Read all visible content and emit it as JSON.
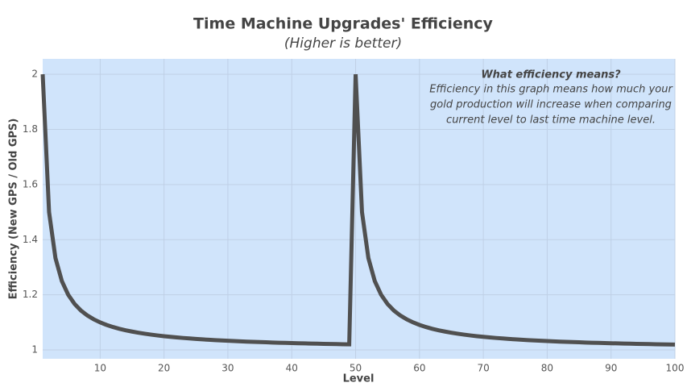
{
  "chart_data": {
    "type": "line",
    "title": "Time Machine Upgrades' Efficiency",
    "subtitle": "(Higher is better)",
    "x_label": "Level",
    "y_label": "Efficiency (New GPS / Old GPS)",
    "annotation": {
      "title": "What efficiency means?",
      "lines": [
        "Efficiency in this graph means how much your",
        "gold production will increase when comparing",
        "current level to last time machine level."
      ]
    },
    "x": [
      1,
      2,
      3,
      4,
      5,
      6,
      7,
      8,
      9,
      10,
      11,
      12,
      13,
      14,
      15,
      16,
      17,
      18,
      19,
      20,
      21,
      22,
      23,
      24,
      25,
      26,
      27,
      28,
      29,
      30,
      31,
      32,
      33,
      34,
      35,
      36,
      37,
      38,
      39,
      40,
      41,
      42,
      43,
      44,
      45,
      46,
      47,
      48,
      49,
      50,
      51,
      52,
      53,
      54,
      55,
      56,
      57,
      58,
      59,
      60,
      61,
      62,
      63,
      64,
      65,
      66,
      67,
      68,
      69,
      70,
      71,
      72,
      73,
      74,
      75,
      76,
      77,
      78,
      79,
      80,
      81,
      82,
      83,
      84,
      85,
      86,
      87,
      88,
      89,
      90,
      91,
      92,
      93,
      94,
      95,
      96,
      97,
      98,
      99,
      100
    ],
    "series": [
      {
        "name": "Efficiency",
        "color": "#505050",
        "values": [
          2,
          1.5,
          1.3333,
          1.25,
          1.2,
          1.1667,
          1.1429,
          1.125,
          1.1111,
          1.1,
          1.0909,
          1.0833,
          1.0769,
          1.0714,
          1.0667,
          1.0625,
          1.0588,
          1.0556,
          1.0526,
          1.05,
          1.0476,
          1.0455,
          1.0435,
          1.0417,
          1.04,
          1.0385,
          1.037,
          1.0357,
          1.0345,
          1.0333,
          1.0323,
          1.0313,
          1.0303,
          1.0294,
          1.0286,
          1.0278,
          1.027,
          1.0263,
          1.0256,
          1.025,
          1.0244,
          1.0238,
          1.0233,
          1.0227,
          1.0222,
          1.0217,
          1.0213,
          1.0208,
          1.0204,
          2,
          1.5,
          1.3333,
          1.25,
          1.2,
          1.1667,
          1.1429,
          1.125,
          1.1111,
          1.1,
          1.0909,
          1.0833,
          1.0769,
          1.0714,
          1.0667,
          1.0625,
          1.0588,
          1.0556,
          1.0526,
          1.05,
          1.0476,
          1.0455,
          1.0435,
          1.0417,
          1.04,
          1.0385,
          1.037,
          1.0357,
          1.0345,
          1.0333,
          1.0323,
          1.0313,
          1.0303,
          1.0294,
          1.0286,
          1.0278,
          1.027,
          1.0263,
          1.0256,
          1.025,
          1.0244,
          1.0238,
          1.0233,
          1.0227,
          1.0222,
          1.0217,
          1.0213,
          1.0208,
          1.0204,
          1.02,
          1.0196
        ]
      }
    ],
    "xlim": [
      1,
      100
    ],
    "xticks": [
      10,
      20,
      30,
      40,
      50,
      60,
      70,
      80,
      90,
      100
    ],
    "ylim": [
      0.968,
      2.056
    ],
    "yticks": [
      1,
      1.2,
      1.4,
      1.6,
      1.8,
      2
    ],
    "grid": true,
    "background": "#d0e4fb"
  }
}
